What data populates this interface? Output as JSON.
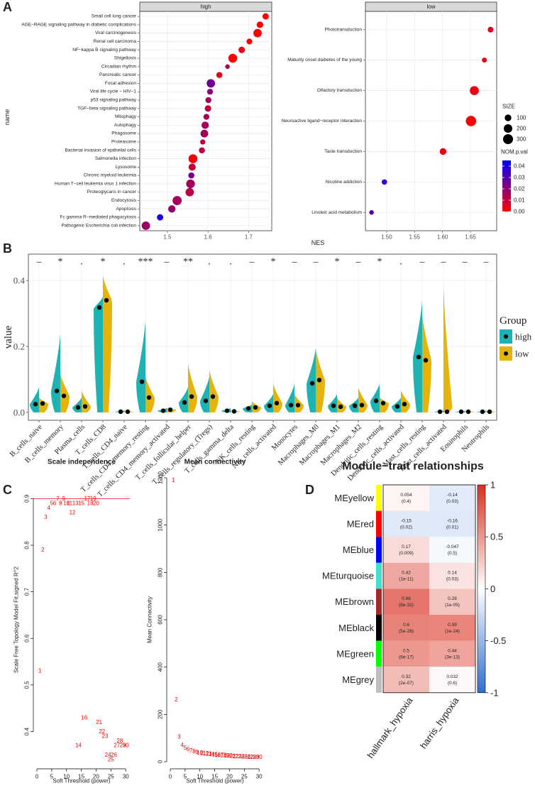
{
  "chart_data": [
    {
      "panel": "A",
      "type": "dotplot",
      "xlabel": "NES",
      "ylabel": "name",
      "facets": [
        {
          "title": "high",
          "categories": [
            "Small cell lung cancer",
            "AGE−RAGE signaling pathway in diabetic complications",
            "Viral carcinogenesis",
            "Renal cell carcinoma",
            "NF−kappa B signaling pathway",
            "Shigellosis",
            "Circadian rhythm",
            "Pancreatic cancer",
            "Focal adhesion",
            "Viral life cycle − HIV−1",
            "p53 signaling pathway",
            "TGF−beta signaling pathway",
            "Mitophagy",
            "Autophagy",
            "Phagosome",
            "Proteasome",
            "Bacterial invasion of epithelial cells",
            "Salmonella infection",
            "Lysosome",
            "Chronic myeloid leukemia",
            "Human T−cell leukemia virus 1 infection",
            "Proteoglycans in cancer",
            "Endocytosis",
            "Apoptosis",
            "Fc gamma R−mediated phagocytosis",
            "Pathogenic Escherichia coli infection"
          ],
          "values": [
            1.742,
            1.728,
            1.722,
            1.702,
            1.683,
            1.661,
            1.648,
            1.628,
            1.607,
            1.605,
            1.601,
            1.6,
            1.596,
            1.593,
            1.591,
            1.587,
            1.585,
            1.563,
            1.561,
            1.559,
            1.557,
            1.555,
            1.524,
            1.511,
            1.482,
            1.447
          ],
          "sizes": [
            85,
            95,
            190,
            65,
            90,
            220,
            30,
            75,
            190,
            65,
            70,
            90,
            70,
            130,
            150,
            45,
            75,
            220,
            120,
            75,
            210,
            190,
            240,
            130,
            85,
            190
          ],
          "pvals": [
            0.0,
            0.0,
            0.0,
            0.002,
            0.004,
            0.0,
            0.014,
            0.004,
            0.025,
            0.02,
            0.016,
            0.012,
            0.015,
            0.016,
            0.016,
            0.012,
            0.012,
            0.001,
            0.01,
            0.025,
            0.016,
            0.012,
            0.016,
            0.019,
            0.04,
            0.018
          ],
          "xlim": [
            1.432,
            1.757
          ],
          "xticks": [
            1.5,
            1.6,
            1.7
          ]
        },
        {
          "title": "low",
          "categories": [
            "Phototransduction",
            "Maturity onset diabetes of the young",
            "Olfactory transduction",
            "Neuroactive ligand−receptor interaction",
            "Taste transduction",
            "Nicotine addiction",
            "Linoleic acid metabolism"
          ],
          "values": [
            1.686,
            1.675,
            1.657,
            1.651,
            1.601,
            1.496,
            1.473
          ],
          "sizes": [
            60,
            40,
            230,
            330,
            100,
            50,
            30
          ],
          "pvals": [
            0.006,
            0.004,
            0.003,
            0.001,
            0.003,
            0.036,
            0.03
          ],
          "xlim": [
            1.462,
            1.697
          ],
          "xticks": [
            {
              "value": 1.5,
              "label": "1.50"
            },
            {
              "value": 1.55,
              "label": "1.55"
            },
            {
              "value": 1.6,
              "label": "1.60"
            },
            {
              "value": 1.65,
              "label": "1.65"
            }
          ]
        }
      ],
      "size_legend": {
        "title": "SIZE",
        "values": [
          100,
          200,
          300
        ]
      },
      "color_legend": {
        "title": "NOM.p.val",
        "low": "#ff0000",
        "high": "#0000ff",
        "lim": [
          0,
          0.045
        ],
        "ticks": [
          {
            "value": 0,
            "label": "0.00"
          },
          {
            "value": 0.01,
            "label": "0.01"
          },
          {
            "value": 0.02,
            "label": "0.02"
          },
          {
            "value": 0.03,
            "label": "0.03"
          },
          {
            "value": 0.04,
            "label": "0.04"
          }
        ]
      }
    },
    {
      "panel": "B",
      "type": "split-violin",
      "ylabel": "value",
      "legend_title": "Group",
      "categories": [
        "B_cells_naive",
        "B_cells_memory",
        "Plasma_cells",
        "T_cells_CD8",
        "T_cells_CD4_naive",
        "T_cells_CD4_memory_resting",
        "T_cells_CD4_memory_activated",
        "T_cells_follicular_helper",
        "T_cells_regulatory_(Tregs)",
        "T_cells_gamma_delta",
        "NK_cells_resting",
        "NK_cells_activated",
        "Monocytes",
        "Macrophages_M0",
        "Macrophages_M1",
        "Macrophages_M2",
        "Dendritic_cells_resting",
        "Dendritic_cells_activated",
        "Mast_cells_resting",
        "Mast_cells_activated",
        "Eosinophils",
        "Neutrophils"
      ],
      "significance": [
        "–",
        "*",
        ".",
        "*",
        ".",
        "***",
        "–",
        "**",
        ".",
        ".",
        "–",
        "*",
        "–",
        "–",
        "*",
        "–",
        "*",
        ".",
        "–",
        "–",
        "–",
        "–"
      ],
      "series": [
        {
          "name": "high",
          "color": "#1fb2b3",
          "values": [
            0.025,
            0.065,
            0.015,
            0.318,
            0.002,
            0.093,
            0.005,
            0.03,
            0.035,
            0.005,
            0.012,
            0.02,
            0.022,
            0.088,
            0.02,
            0.02,
            0.035,
            0.018,
            0.168,
            0.002,
            0.002,
            0.002
          ],
          "max": [
            0.077,
            0.24,
            0.045,
            0.35,
            0.006,
            0.28,
            0.013,
            0.077,
            0.11,
            0.013,
            0.024,
            0.056,
            0.088,
            0.196,
            0.056,
            0.045,
            0.088,
            0.045,
            0.34,
            0.006,
            0.005,
            0.005
          ]
        },
        {
          "name": "low",
          "color": "#e4b40c",
          "values": [
            0.027,
            0.05,
            0.018,
            0.34,
            0.002,
            0.045,
            0.008,
            0.048,
            0.048,
            0.003,
            0.015,
            0.028,
            0.022,
            0.098,
            0.017,
            0.022,
            0.028,
            0.025,
            0.158,
            0.002,
            0.002,
            0.002
          ],
          "max": [
            0.045,
            0.12,
            0.067,
            0.415,
            0.006,
            0.11,
            0.013,
            0.15,
            0.13,
            0.006,
            0.034,
            0.088,
            0.056,
            0.196,
            0.045,
            0.077,
            0.045,
            0.067,
            0.3,
            0.39,
            0.005,
            0.005
          ]
        }
      ],
      "ylim": [
        -0.024,
        0.48
      ],
      "yticks": [
        {
          "value": 0,
          "label": "0.0"
        },
        {
          "value": 0.2,
          "label": "0.2"
        },
        {
          "value": 0.4,
          "label": "0.4"
        }
      ]
    },
    {
      "panel": "C",
      "type": "scatter-text",
      "title": "Scale independence",
      "xlabel": "Soft Threshold (power)",
      "ylabel": "Scale Free Topology Model Fit,signed R^2",
      "color": "#ff0000",
      "x": [
        1,
        2,
        3,
        4,
        5,
        6,
        7,
        8,
        9,
        10,
        11,
        12,
        13,
        14,
        15,
        16,
        17,
        18,
        19,
        20,
        21,
        22,
        23,
        24,
        25,
        26,
        27,
        28,
        29,
        30
      ],
      "values": [
        0.53,
        0.79,
        0.86,
        0.88,
        0.89,
        0.89,
        0.9,
        0.89,
        0.9,
        0.89,
        0.89,
        0.87,
        0.89,
        0.37,
        0.89,
        0.43,
        0.9,
        0.89,
        0.9,
        0.89,
        0.42,
        0.4,
        0.39,
        0.35,
        0.34,
        0.35,
        0.37,
        0.38,
        0.37,
        0.37
      ],
      "hline": 0.9,
      "xlim": [
        -1.2,
        31.4
      ],
      "xticks": [
        0,
        5,
        10,
        15,
        20,
        25,
        30
      ],
      "ylim": [
        0.32,
        0.96
      ],
      "yticks": [
        0.4,
        0.5,
        0.6,
        0.7,
        0.8,
        0.9
      ]
    },
    {
      "type": "scatter-text",
      "title": "Mean connectivity",
      "xlabel": "Soft Threshold (power)",
      "ylabel": "Mean Connectivity",
      "color": "#ff0000",
      "x": [
        1,
        2,
        3,
        4,
        5,
        6,
        7,
        8,
        9,
        10,
        11,
        12,
        13,
        14,
        15,
        16,
        17,
        18,
        19,
        20,
        21,
        22,
        23,
        24,
        25,
        26,
        27,
        28,
        29,
        30
      ],
      "values": [
        1190,
        262,
        105,
        70,
        58,
        52,
        47,
        43,
        40,
        38,
        36,
        34,
        33,
        31,
        30,
        29,
        28,
        27,
        26,
        25,
        24,
        23,
        23,
        22,
        21,
        21,
        20,
        20,
        19,
        19
      ],
      "xlim": [
        -1.2,
        31.4
      ],
      "xticks": [
        0,
        5,
        10,
        15,
        20,
        25,
        30
      ],
      "ylim": [
        -30,
        1230
      ],
      "yticks": [
        0,
        200,
        400,
        600,
        800,
        1000,
        1200
      ]
    },
    {
      "panel": "D",
      "type": "heatmap",
      "title": "Module−trait relationships",
      "rows": [
        "MEyellow",
        "MEred",
        "MEblue",
        "MEturquoise",
        "MEbrown",
        "MEblack",
        "MEgreen",
        "MEgrey"
      ],
      "row_colors": [
        "#ffff00",
        "#ff0000",
        "#0000ff",
        "#40e0d0",
        "#a52a2a",
        "#000000",
        "#00ff00",
        "#bebebe"
      ],
      "columns": [
        "hallmark_hypoxia",
        "harris_hypoxia"
      ],
      "values": [
        [
          0.054,
          -0.14
        ],
        [
          -0.15,
          -0.16
        ],
        [
          0.17,
          -0.047
        ],
        [
          0.42,
          0.14
        ],
        [
          0.66,
          0.28
        ],
        [
          0.6,
          0.59
        ],
        [
          0.5,
          0.44
        ],
        [
          0.32,
          0.032
        ]
      ],
      "p_labels": [
        [
          "(0.4)",
          "(0.03)"
        ],
        [
          "(0.02)",
          "(0.01)"
        ],
        [
          "(0.009)",
          "(0.5)"
        ],
        [
          "(1e-11)",
          "(0.03)"
        ],
        [
          "(8e-32)",
          "(1e-05)"
        ],
        [
          "(5e-26)",
          "(1e-24)"
        ],
        [
          "(6e-17)",
          "(3e-13)"
        ],
        [
          "(2e-07)",
          "(0.6)"
        ]
      ],
      "colors": [
        "#2f6fd1",
        "#ffffff",
        "#d9301f"
      ],
      "lim": [
        -1,
        1
      ],
      "ticks": [
        1,
        0.5,
        0,
        -0.5,
        -1
      ]
    }
  ]
}
